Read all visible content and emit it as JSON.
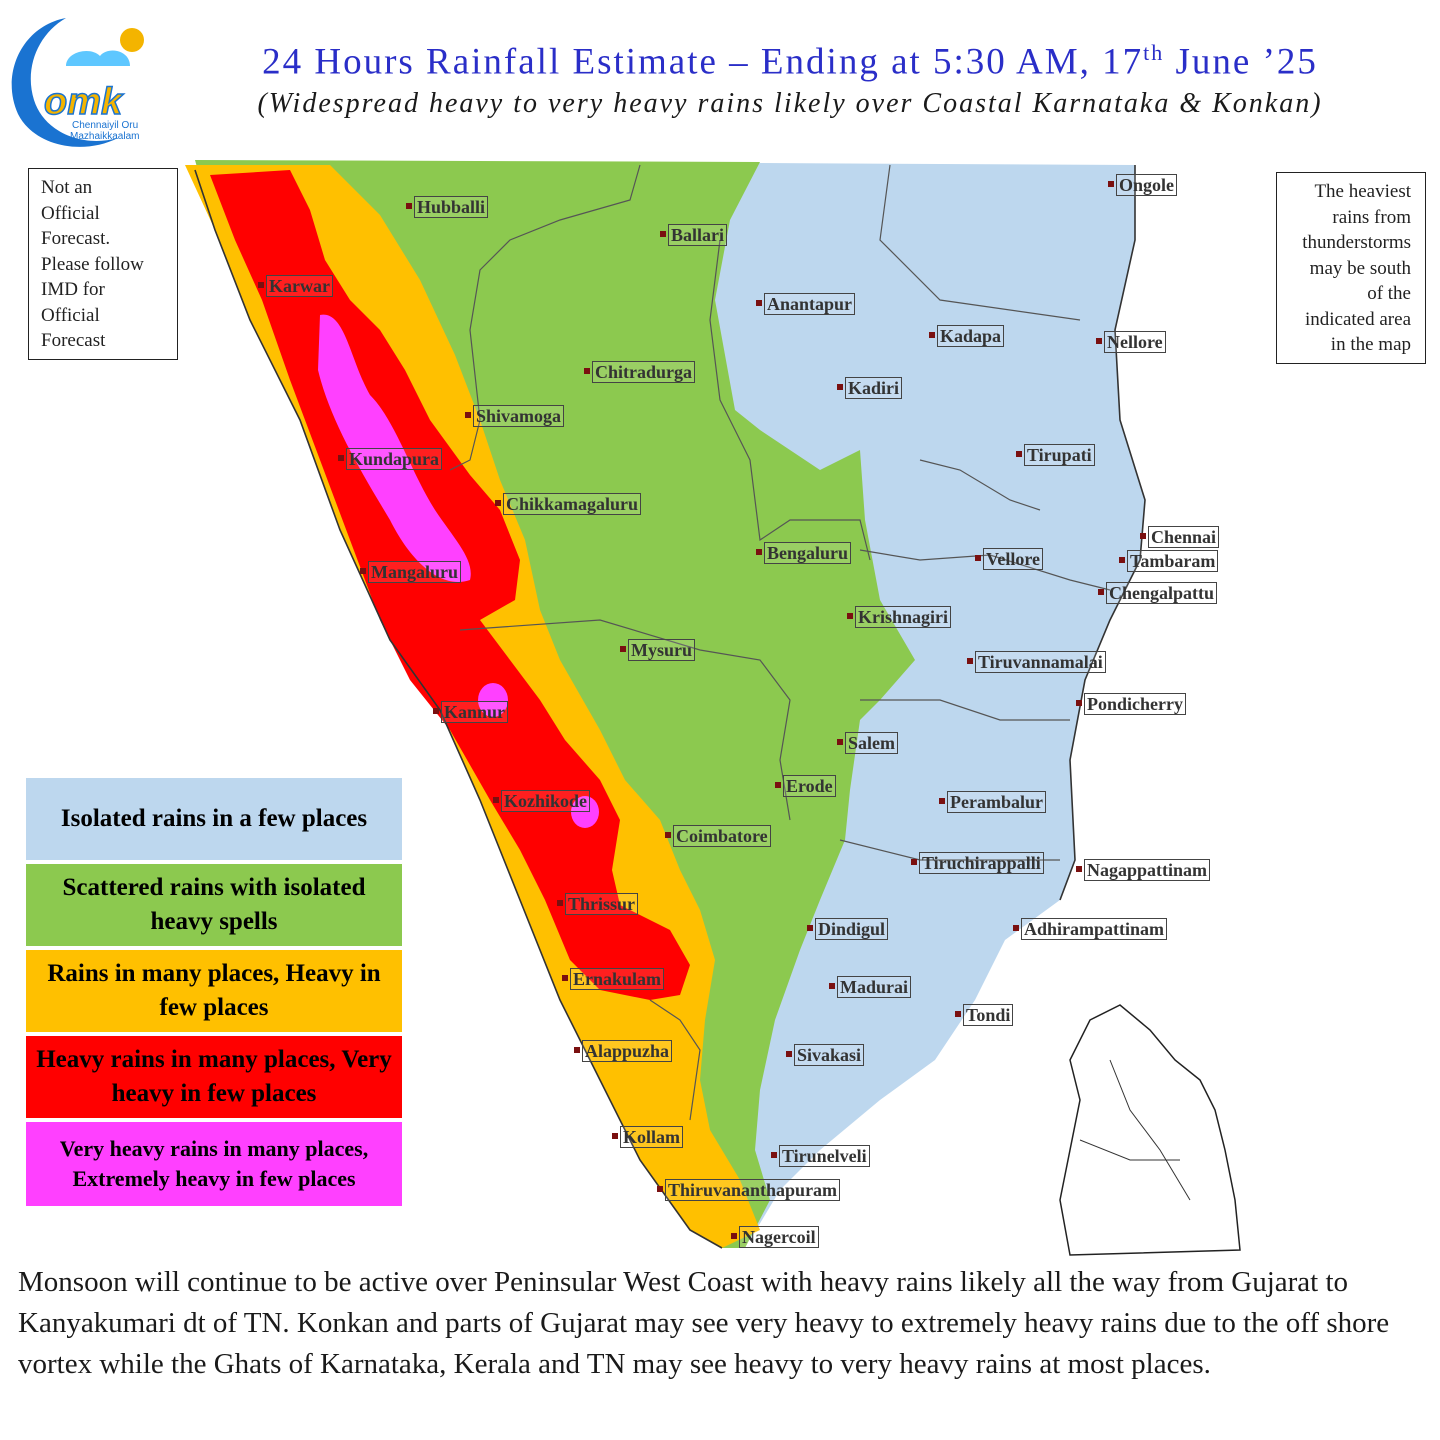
{
  "header": {
    "title": "24 Hours Rainfall Estimate – Ending at 5:30 AM, 17",
    "title_sup": "th",
    "title_end": " June ’25",
    "subtitle": "(Widespread heavy to very heavy rains likely over Coastal Karnataka & Konkan)"
  },
  "logo": {
    "text": "omk",
    "tagline_1": "Chennaiyil Oru",
    "tagline_2": "Mazhaikkaalam"
  },
  "notes": {
    "left": [
      "Not an",
      "Official",
      "Forecast.",
      "Please follow",
      "IMD for",
      "Official",
      "Forecast"
    ],
    "right": [
      "The heaviest",
      "rains from",
      "thunderstorms",
      "may be south",
      "of the",
      "indicated area",
      "in the map"
    ]
  },
  "legend": [
    {
      "label": "Isolated rains in a few places",
      "color": "#bdd7ee",
      "text_color": "#111111"
    },
    {
      "label": "Scattered rains with isolated heavy spells",
      "color": "#8cc94f",
      "text_color": "#111111"
    },
    {
      "label": "Rains in many places, Heavy in few places",
      "color": "#ffc000",
      "text_color": "#111111"
    },
    {
      "label": "Heavy rains in many places, Very heavy in few places",
      "color": "#ff0000",
      "text_color": "#111111"
    },
    {
      "label": "Very heavy rains in many places, Extremely heavy in few places",
      "color": "#ff40ff",
      "text_color": "#111111"
    }
  ],
  "cities": [
    "Hubballi",
    "Ballari",
    "Ongole",
    "Karwar",
    "Anantapur",
    "Kadapa",
    "Nellore",
    "Chitradurga",
    "Kadiri",
    "Shivamoga",
    "Kundapura",
    "Tirupati",
    "Chikkamagaluru",
    "Chennai",
    "Bengaluru",
    "Vellore",
    "Tambaram",
    "Mangaluru",
    "Chengalpattu",
    "Krishnagiri",
    "Mysuru",
    "Tiruvannamalai",
    "Pondicherry",
    "Kannur",
    "Salem",
    "Erode",
    "Kozhikode",
    "Perambalur",
    "Coimbatore",
    "Tiruchirappalli",
    "Nagappattinam",
    "Thrissur",
    "Dindigul",
    "Adhirampattinam",
    "Ernakulam",
    "Madurai",
    "Tondi",
    "Alappuzha",
    "Sivakasi",
    "Kollam",
    "Tirunelveli",
    "Thiruvananthapuram",
    "Nagercoil"
  ],
  "footer": "Monsoon will continue to be active over Peninsular West Coast with heavy rains likely all the way from Gujarat to Kanyakumari dt of TN. Konkan and parts of Gujarat may see very heavy to extremely heavy rains due to the off shore vortex while the Ghats of Karnataka, Kerala and TN may see heavy to very heavy rains at most places."
}
